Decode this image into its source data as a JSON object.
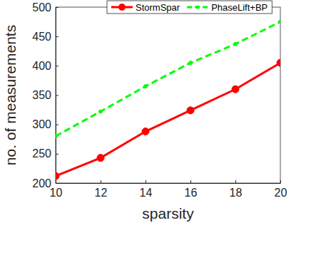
{
  "chart_data": {
    "type": "line",
    "x_label": "sparsity",
    "y_label": "no. of measurements",
    "x": [
      10,
      12,
      14,
      16,
      18,
      20
    ],
    "series": [
      {
        "name": "StormSpar",
        "color": "#ff0000",
        "marker": "circle",
        "line_style": "solid",
        "values": [
          212,
          243,
          288,
          324,
          360,
          405
        ]
      },
      {
        "name": "PhaseLift+BP",
        "color": "#00ff00",
        "marker": "point",
        "line_style": "dashed",
        "values": [
          280,
          322,
          365,
          405,
          437,
          475
        ]
      }
    ],
    "xlim": [
      10,
      20
    ],
    "xticks": [
      10,
      12,
      14,
      16,
      18,
      20
    ],
    "ylim": [
      200,
      500
    ],
    "yticks": [
      200,
      250,
      300,
      350,
      400,
      450,
      500
    ],
    "grid": false,
    "legend": "top"
  }
}
